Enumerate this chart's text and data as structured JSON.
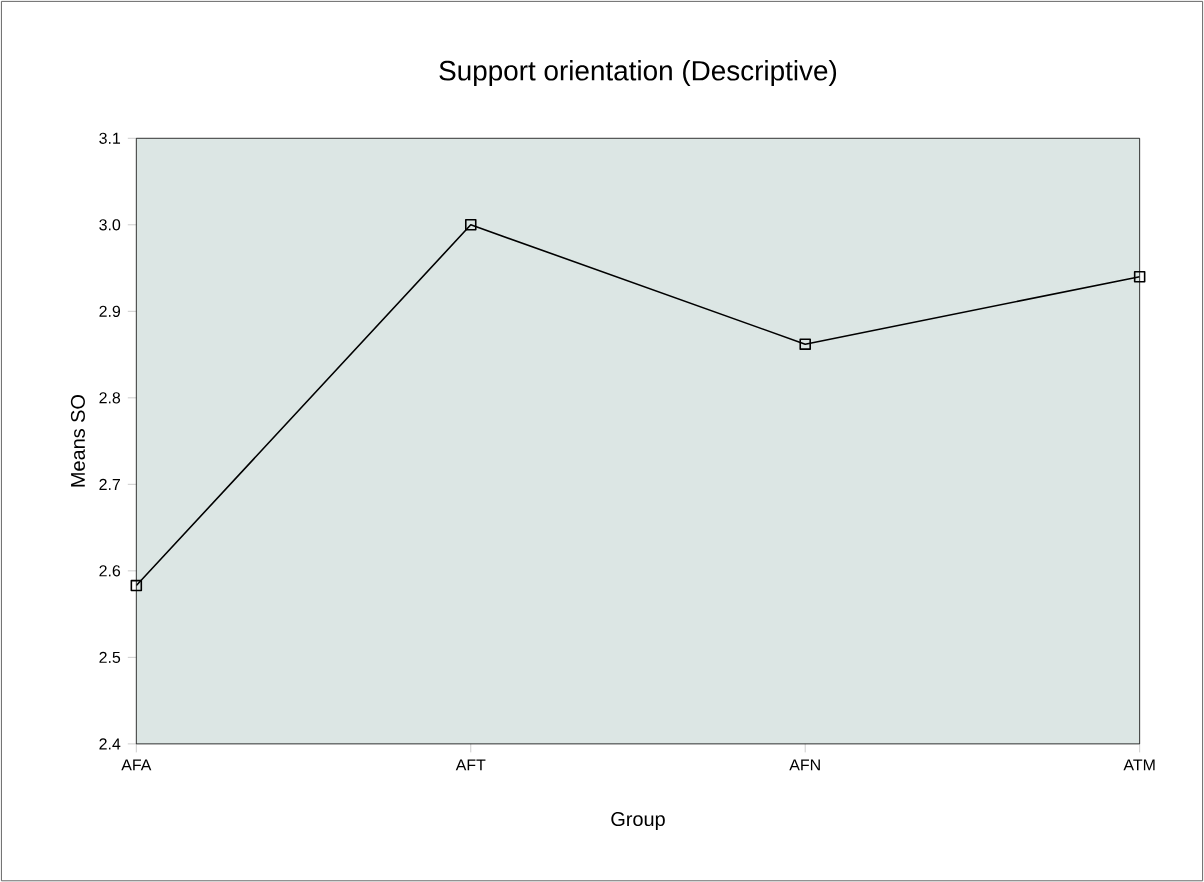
{
  "chart_data": {
    "type": "line",
    "title": "Support orientation (Descriptive)",
    "xlabel": "Group",
    "ylabel": "Means SO",
    "categories": [
      "AFA",
      "AFT",
      "AFN",
      "ATM"
    ],
    "series": [
      {
        "color": "#000000",
        "values": [
          2.583,
          3.0,
          2.862,
          2.94
        ]
      }
    ],
    "ylim": [
      2.4,
      3.1
    ],
    "yticks": [
      2.4,
      2.5,
      2.6,
      2.7,
      2.8,
      2.9,
      {
        "value": 3.0,
        "label": "3.0"
      },
      3.1
    ],
    "marker": "square",
    "line_style": "solid"
  }
}
